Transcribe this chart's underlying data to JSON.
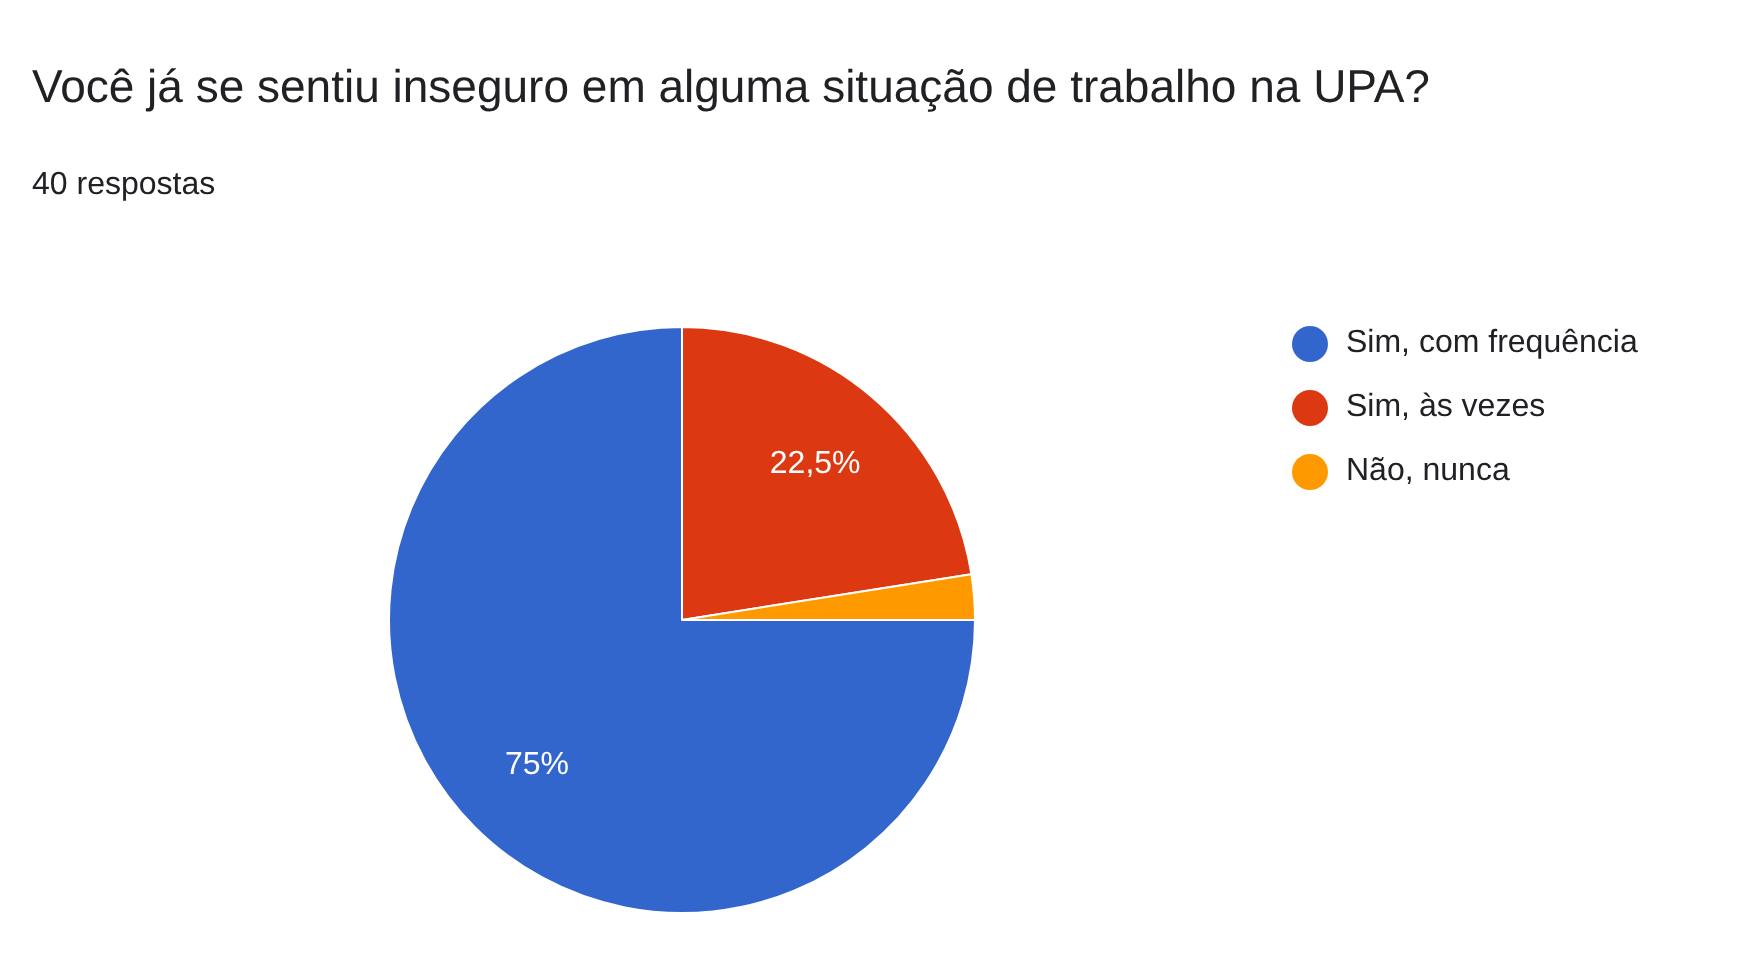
{
  "chart_data": {
    "type": "pie",
    "title": "Você já se sentiu inseguro em alguma situação de trabalho na UPA?",
    "subtitle": "40 respostas",
    "categories": [
      "Sim, com frequência",
      "Sim, às vezes",
      "Não, nunca"
    ],
    "values": [
      75,
      22.5,
      2.5
    ],
    "colors": [
      "#3366cc",
      "#dc3912",
      "#ff9900"
    ],
    "value_labels": [
      "75%",
      "22,5%",
      null
    ],
    "legend": "top right"
  }
}
